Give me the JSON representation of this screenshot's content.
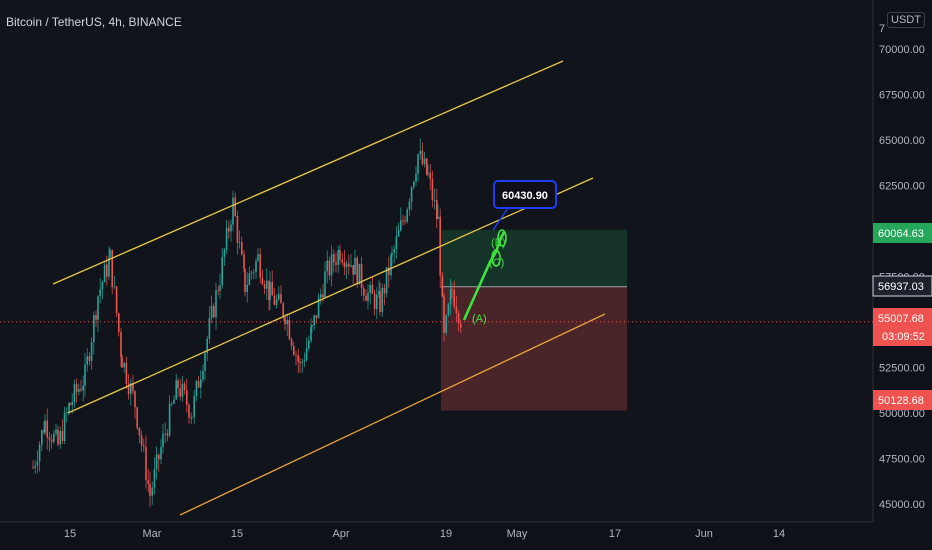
{
  "header": {
    "title": "Bitcoin / TetherUS, 4h, BINANCE",
    "currency": "USDT"
  },
  "chart_data": {
    "type": "candlestick",
    "x_ticks": [
      "15",
      "Mar",
      "15",
      "Apr",
      "19",
      "May",
      "17",
      "Jun",
      "14"
    ],
    "y_ticks": [
      45000,
      47500,
      50000,
      52500,
      55000,
      57500,
      60000,
      62500,
      65000,
      67500,
      70000
    ],
    "y_partial_top_label": "7",
    "ylim": [
      44000,
      72700
    ],
    "price_badges": [
      {
        "value": "60064.63",
        "color": "#26a65b",
        "kind": "filled"
      },
      {
        "value": "56937.03",
        "color": "#d1d4dc",
        "kind": "outline"
      },
      {
        "value": "55007.68",
        "countdown": "03:09:52",
        "color": "#ef5350",
        "kind": "filled"
      },
      {
        "value": "50128.68",
        "color": "#ef5350",
        "kind": "filled"
      }
    ],
    "annotations": {
      "callout": "60430.90",
      "wave_a": "(A)",
      "wave_b": "(B)",
      "wave_c": "(C)"
    },
    "position": {
      "entry": 56937.03,
      "target": 60064.63,
      "stop": 50128.68
    }
  }
}
